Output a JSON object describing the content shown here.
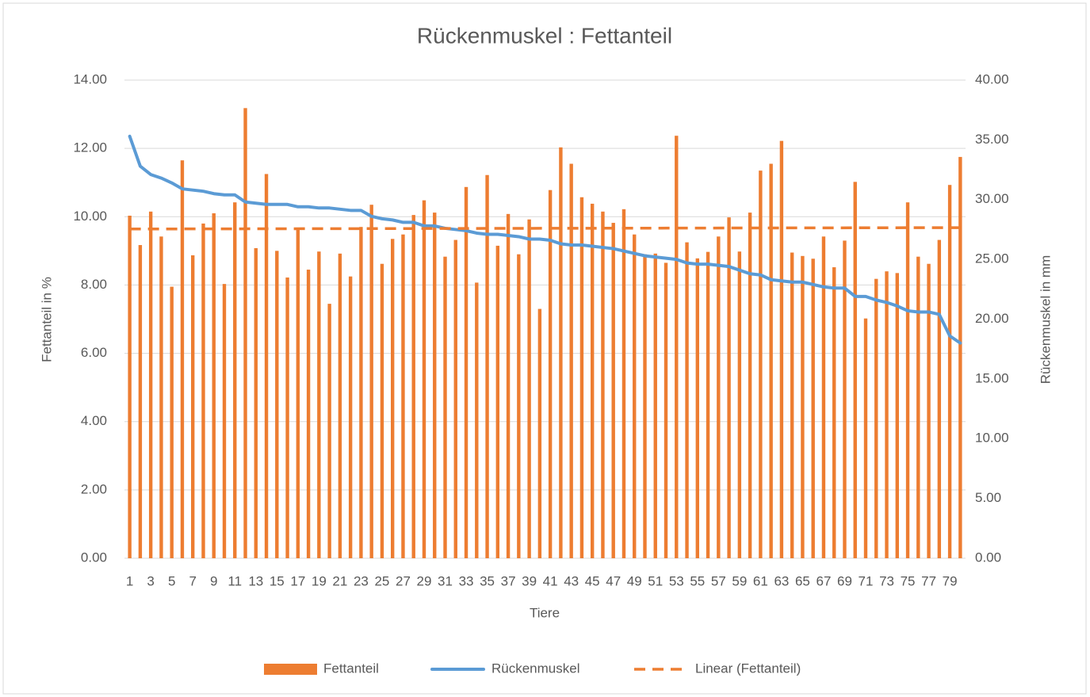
{
  "chart_data": {
    "type": "bar-line",
    "title": "Rückenmuskel : Fettanteil",
    "x_label": "Tiere",
    "y_label": "Fettanteil in %",
    "y2_label": "Rückenmuskel in mm",
    "categories": [
      "1",
      null,
      "3",
      null,
      "5",
      null,
      "7",
      null,
      "9",
      null,
      "11",
      null,
      "13",
      null,
      "15",
      null,
      "17",
      null,
      "19",
      null,
      "21",
      null,
      "23",
      null,
      "25",
      null,
      "27",
      null,
      "29",
      null,
      "31",
      null,
      "33",
      null,
      "35",
      null,
      "37",
      null,
      "39",
      null,
      "41",
      null,
      "43",
      null,
      "45",
      null,
      "47",
      null,
      "49",
      null,
      "51",
      null,
      "53",
      null,
      "55",
      null,
      "57",
      null,
      "59",
      null,
      "61",
      null,
      "63",
      null,
      "65",
      null,
      "67",
      null,
      "69",
      null,
      "71",
      null,
      "73",
      null,
      "75",
      null,
      "77",
      null,
      "79",
      null
    ],
    "series": [
      {
        "name": "Fettanteil",
        "type": "bar",
        "color": "#ed7d31",
        "values": [
          10.03,
          9.17,
          10.15,
          9.42,
          7.95,
          11.65,
          8.87,
          9.8,
          10.1,
          8.03,
          10.42,
          13.18,
          9.08,
          11.25,
          9.0,
          8.22,
          9.65,
          8.45,
          8.98,
          7.45,
          8.92,
          8.25,
          9.7,
          10.35,
          8.62,
          9.35,
          9.48,
          10.05,
          10.48,
          10.12,
          8.83,
          9.32,
          10.87,
          8.07,
          11.22,
          9.15,
          10.08,
          8.9,
          9.92,
          7.3,
          10.78,
          12.03,
          11.55,
          10.57,
          10.38,
          10.15,
          9.82,
          10.22,
          9.48,
          8.9,
          8.92,
          8.65,
          12.37,
          9.25,
          8.78,
          8.97,
          9.42,
          9.98,
          8.98,
          10.12,
          11.35,
          11.55,
          12.22,
          8.95,
          8.85,
          8.77,
          9.42,
          8.52,
          9.3,
          11.02,
          7.02,
          8.18,
          8.4,
          8.35,
          10.42,
          8.83,
          8.62,
          9.32,
          10.93,
          11.75
        ]
      },
      {
        "name": "Rückenmuskel",
        "type": "line",
        "axis": "y2",
        "color": "#5b9bd5",
        "values": [
          35.3,
          32.8,
          32.1,
          31.8,
          31.4,
          30.9,
          30.8,
          30.7,
          30.5,
          30.4,
          30.4,
          29.8,
          29.7,
          29.6,
          29.6,
          29.6,
          29.4,
          29.4,
          29.3,
          29.3,
          29.2,
          29.1,
          29.1,
          28.6,
          28.4,
          28.3,
          28.1,
          28.1,
          27.8,
          27.8,
          27.6,
          27.5,
          27.4,
          27.2,
          27.1,
          27.1,
          27.0,
          26.9,
          26.7,
          26.7,
          26.6,
          26.3,
          26.2,
          26.2,
          26.1,
          26.0,
          25.9,
          25.7,
          25.5,
          25.3,
          25.2,
          25.1,
          25.0,
          24.7,
          24.6,
          24.6,
          24.5,
          24.4,
          24.1,
          23.8,
          23.7,
          23.3,
          23.2,
          23.1,
          23.1,
          22.9,
          22.7,
          22.6,
          22.6,
          21.9,
          21.9,
          21.6,
          21.4,
          21.1,
          20.7,
          20.6,
          20.6,
          20.4,
          18.6,
          18.0
        ]
      }
    ],
    "trendline": {
      "name": "Linear (Fettanteil)",
      "color": "#ed7d31",
      "dash": true,
      "start": 9.64,
      "end": 9.68
    },
    "ylim": [
      0,
      14
    ],
    "yticks": [
      {
        "value": 0,
        "label": "0.00"
      },
      {
        "value": 2,
        "label": "2.00"
      },
      {
        "value": 4,
        "label": "4.00"
      },
      {
        "value": 6,
        "label": "6.00"
      },
      {
        "value": 8,
        "label": "8.00"
      },
      {
        "value": 10,
        "label": "10.00"
      },
      {
        "value": 12,
        "label": "12.00"
      },
      {
        "value": 14,
        "label": "14.00"
      }
    ],
    "y2lim": [
      0,
      40
    ],
    "y2ticks": [
      {
        "value": 0,
        "label": "0.00"
      },
      {
        "value": 5,
        "label": "5.00"
      },
      {
        "value": 10,
        "label": "10.00"
      },
      {
        "value": 15,
        "label": "15.00"
      },
      {
        "value": 20,
        "label": "20.00"
      },
      {
        "value": 25,
        "label": "25.00"
      },
      {
        "value": 30,
        "label": "30.00"
      },
      {
        "value": 35,
        "label": "35.00"
      },
      {
        "value": 40,
        "label": "40.00"
      }
    ],
    "grid": true,
    "legend": "bottom"
  }
}
